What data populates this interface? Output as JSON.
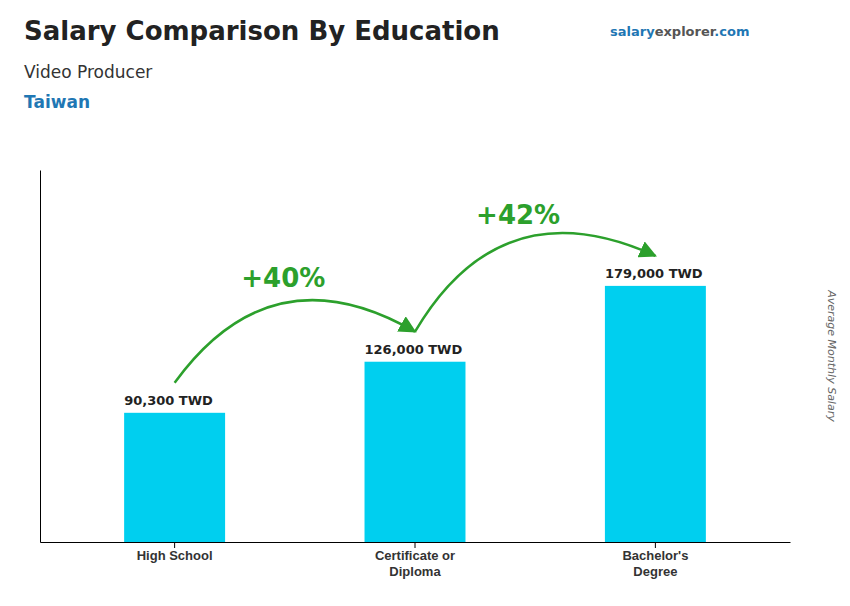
{
  "chart_data": {
    "type": "bar",
    "title": "Salary Comparison By Education",
    "subtitle": [
      "Video Producer",
      "Taiwan"
    ],
    "source": [
      "salary",
      "explorer",
      ".com"
    ],
    "y_label": "Average Monthly Salary",
    "categories": [
      "High School",
      "Certificate or\nDiploma",
      "Bachelor's\nDegree"
    ],
    "values": [
      90300,
      126000,
      179000
    ],
    "value_labels": [
      "90,300 TWD",
      "126,000 TWD",
      "179,000 TWD"
    ],
    "data_labels": true,
    "annotations": [
      "+40%",
      "+42%"
    ],
    "color": "#00CFEF",
    "ylim": [
      0,
      260000
    ],
    "tick_labels": "x",
    "grid": false
  }
}
